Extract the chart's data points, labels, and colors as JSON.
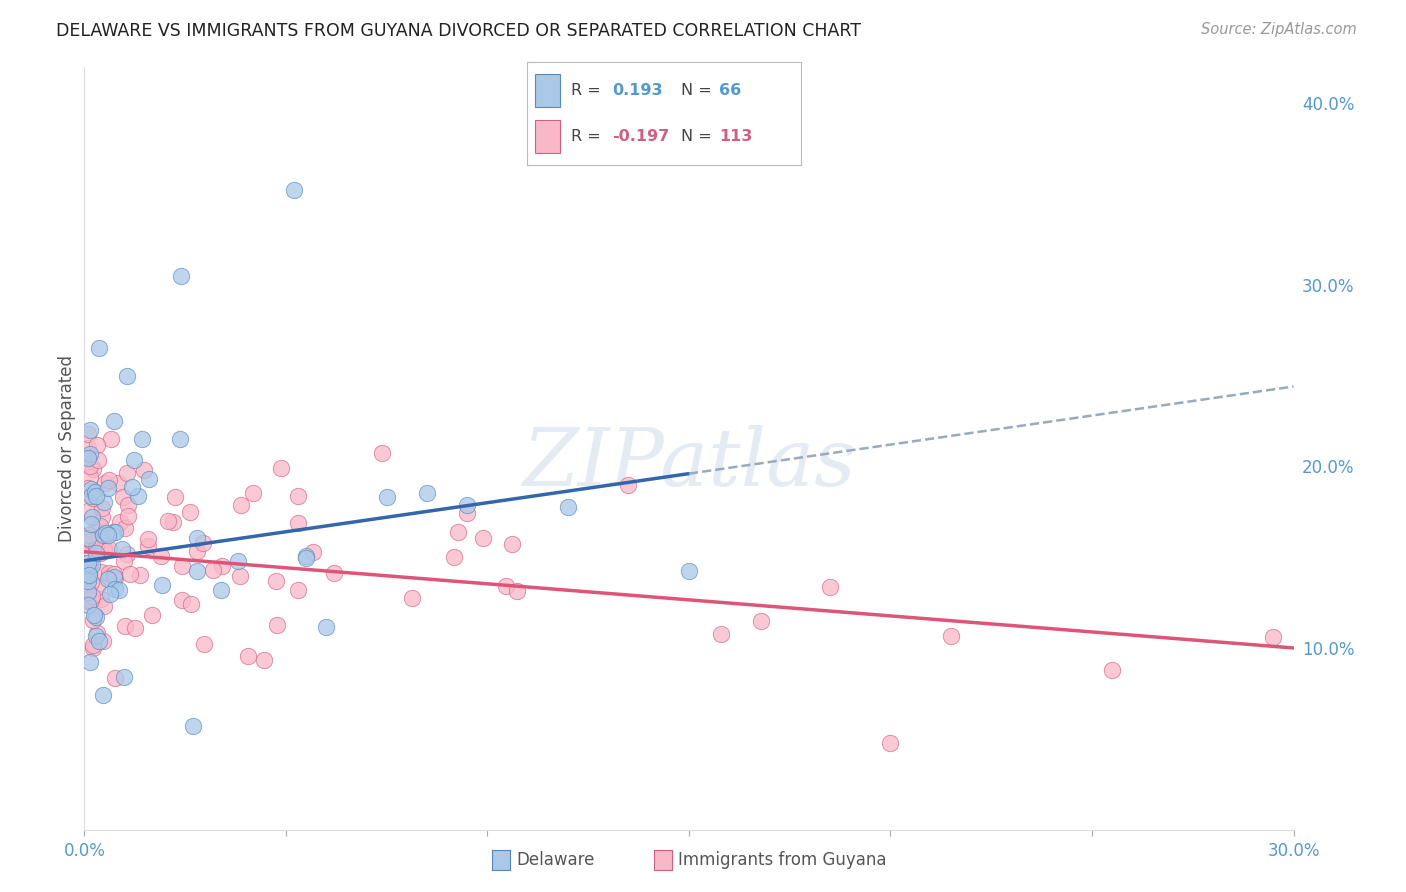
{
  "title": "DELAWARE VS IMMIGRANTS FROM GUYANA DIVORCED OR SEPARATED CORRELATION CHART",
  "source": "Source: ZipAtlas.com",
  "ylabel": "Divorced or Separated",
  "xlim": [
    0.0,
    0.3
  ],
  "ylim": [
    0.0,
    0.42
  ],
  "xtick_positions": [
    0.0,
    0.05,
    0.1,
    0.15,
    0.2,
    0.25,
    0.3
  ],
  "xtick_labels": [
    "0.0%",
    "",
    "",
    "",
    "",
    "",
    "30.0%"
  ],
  "ytick_positions": [
    0.0,
    0.1,
    0.2,
    0.3,
    0.4
  ],
  "ytick_labels": [
    "",
    "10.0%",
    "20.0%",
    "30.0%",
    "40.0%"
  ],
  "blue_fill": "#aac8e8",
  "blue_edge": "#5588bb",
  "pink_fill": "#f9b8c8",
  "pink_edge": "#d06080",
  "blue_line_color": "#3366aa",
  "pink_line_color": "#dd5577",
  "dashed_line_color": "#99aabb",
  "watermark": "ZIPatlas",
  "background_color": "#ffffff",
  "grid_color": "#cccccc",
  "title_color": "#222222",
  "axis_label_color": "#555555",
  "tick_color": "#5599cc",
  "legend_r1_val": "0.193",
  "legend_n1_val": "66",
  "legend_r2_val": "-0.197",
  "legend_n2_val": "113",
  "blue_line_x0": 0.0,
  "blue_line_y0": 0.148,
  "blue_line_x1": 0.15,
  "blue_line_y1": 0.196,
  "dash_line_x0": 0.15,
  "dash_line_y0": 0.196,
  "dash_line_x1": 0.3,
  "dash_line_y1": 0.244,
  "pink_line_x0": 0.0,
  "pink_line_y0": 0.153,
  "pink_line_x1": 0.3,
  "pink_line_y1": 0.1
}
